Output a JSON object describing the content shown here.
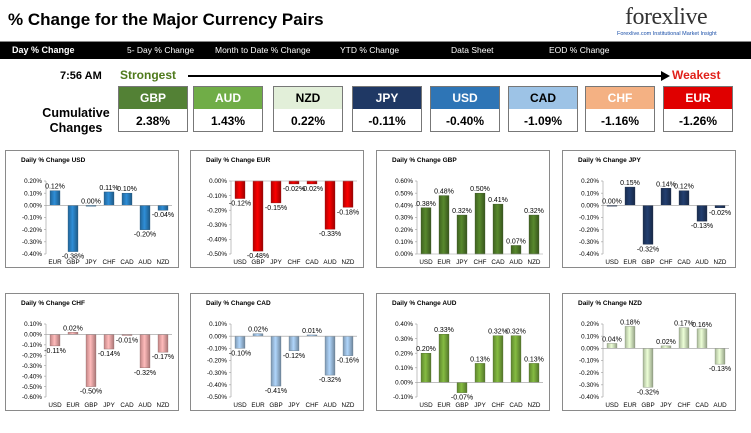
{
  "header": {
    "title": "% Change for the Major Currency Pairs",
    "logo_text": "forexlive",
    "logo_tagline": "Forexlive.com Institutional Market Insight"
  },
  "nav": {
    "tabs": [
      {
        "label": "Day % Change",
        "active": true
      },
      {
        "label": "5- Day % Change"
      },
      {
        "label": "Month to Date % Change"
      },
      {
        "label": "YTD % Change"
      },
      {
        "label": "Data Sheet"
      },
      {
        "label": "EOD % Change"
      }
    ]
  },
  "summary": {
    "time": "7:56 AM",
    "strongest_label": "Strongest",
    "weakest_label": "Weakest",
    "cumulative_label": "Cumulative Changes",
    "currencies": [
      {
        "name": "GBP",
        "value": "2.38%",
        "bg": "#538135",
        "fg": "#ffffff"
      },
      {
        "name": "AUD",
        "value": "1.43%",
        "bg": "#70ad47",
        "fg": "#ffffff"
      },
      {
        "name": "NZD",
        "value": "0.22%",
        "bg": "#e2efd9",
        "fg": "#000000"
      },
      {
        "name": "JPY",
        "value": "-0.11%",
        "bg": "#1f3864",
        "fg": "#ffffff"
      },
      {
        "name": "USD",
        "value": "-0.40%",
        "bg": "#2e75b6",
        "fg": "#ffffff"
      },
      {
        "name": "CAD",
        "value": "-1.09%",
        "bg": "#9dc3e6",
        "fg": "#000000"
      },
      {
        "name": "CHF",
        "value": "-1.16%",
        "bg": "#f4b183",
        "fg": "#ffffff"
      },
      {
        "name": "EUR",
        "value": "-1.26%",
        "bg": "#e00000",
        "fg": "#ffffff"
      }
    ]
  },
  "chart_data": [
    {
      "type": "bar",
      "title": "Daily % Change USD",
      "color": "#2a7fc0",
      "categories": [
        "EUR",
        "GBP",
        "JPY",
        "CHF",
        "CAD",
        "AUD",
        "NZD"
      ],
      "values": [
        0.12,
        -0.38,
        0.0,
        0.11,
        0.1,
        -0.2,
        -0.04
      ],
      "labels": [
        "0.12%",
        "-0.38%",
        "0.00%",
        "0.11%",
        "0.10%",
        "-0.20%",
        "-0.04%"
      ],
      "ylim": [
        -0.4,
        0.2
      ],
      "ticks": [
        0.2,
        0.1,
        0.0,
        -0.1,
        -0.2,
        -0.3,
        -0.4
      ],
      "tick_labels": [
        "0.20%",
        "0.10%",
        "0.00%",
        "-0.10%",
        "-0.20%",
        "-0.30%",
        "-0.40%"
      ]
    },
    {
      "type": "bar",
      "title": "Daily % Change EUR",
      "color": "#e00000",
      "categories": [
        "USD",
        "GBP",
        "JPY",
        "CHF",
        "CAD",
        "AUD",
        "NZD"
      ],
      "values": [
        -0.12,
        -0.48,
        -0.15,
        -0.02,
        -0.02,
        -0.33,
        -0.18
      ],
      "labels": [
        "-0.12%",
        "-0.48%",
        "-0.15%",
        "-0.02%",
        "-0.02%",
        "-0.33%",
        "-0.18%"
      ],
      "ylim": [
        -0.5,
        0.0
      ],
      "ticks": [
        0.0,
        -0.1,
        -0.2,
        -0.3,
        -0.4,
        -0.5
      ],
      "tick_labels": [
        "0.00%",
        "-0.10%",
        "-0.20%",
        "-0.30%",
        "-0.40%",
        "-0.50%"
      ]
    },
    {
      "type": "bar",
      "title": "Daily % Change GBP",
      "color": "#4f7a28",
      "categories": [
        "USD",
        "EUR",
        "JPY",
        "CHF",
        "CAD",
        "AUD",
        "NZD"
      ],
      "values": [
        0.38,
        0.48,
        0.32,
        0.5,
        0.41,
        0.07,
        0.32
      ],
      "labels": [
        "0.38%",
        "0.48%",
        "0.32%",
        "0.50%",
        "0.41%",
        "0.07%",
        "0.32%"
      ],
      "ylim": [
        0.0,
        0.6
      ],
      "ticks": [
        0.6,
        0.5,
        0.4,
        0.3,
        0.2,
        0.1,
        0.0
      ],
      "tick_labels": [
        "0.60%",
        "0.50%",
        "0.40%",
        "0.30%",
        "0.20%",
        "0.10%",
        "0.00%"
      ]
    },
    {
      "type": "bar",
      "title": "Daily % Change JPY",
      "color": "#1f3864",
      "categories": [
        "USD",
        "EUR",
        "GBP",
        "CHF",
        "CAD",
        "AUD",
        "NZD"
      ],
      "values": [
        0.0,
        0.15,
        -0.32,
        0.14,
        0.12,
        -0.13,
        -0.02
      ],
      "labels": [
        "0.00%",
        "0.15%",
        "-0.32%",
        "0.14%",
        "0.12%",
        "-0.13%",
        "-0.02%"
      ],
      "ylim": [
        -0.4,
        0.2
      ],
      "ticks": [
        0.2,
        0.1,
        0.0,
        -0.1,
        -0.2,
        -0.3,
        -0.4
      ],
      "tick_labels": [
        "0.20%",
        "0.10%",
        "0.00%",
        "-0.10%",
        "-0.20%",
        "-0.30%",
        "-0.40%"
      ]
    },
    {
      "type": "bar",
      "title": "Daily % Change CHF",
      "color": "#f2a7a7",
      "categories": [
        "USD",
        "EUR",
        "GBP",
        "JPY",
        "CAD",
        "AUD",
        "NZD"
      ],
      "values": [
        -0.11,
        0.02,
        -0.5,
        -0.14,
        -0.01,
        -0.32,
        -0.17
      ],
      "labels": [
        "-0.11%",
        "0.02%",
        "-0.50%",
        "-0.14%",
        "-0.01%",
        "-0.32%",
        "-0.17%"
      ],
      "ylim": [
        -0.6,
        0.1
      ],
      "ticks": [
        0.1,
        0.0,
        -0.1,
        -0.2,
        -0.3,
        -0.4,
        -0.5,
        -0.6
      ],
      "tick_labels": [
        "0.10%",
        "0.00%",
        "-0.10%",
        "-0.20%",
        "-0.30%",
        "-0.40%",
        "-0.50%",
        "-0.60%"
      ]
    },
    {
      "type": "bar",
      "title": "Daily % Change CAD",
      "color": "#9dbfe0",
      "categories": [
        "USD",
        "EUR",
        "GBP",
        "JPY",
        "CHF",
        "AUD",
        "NZD"
      ],
      "values": [
        -0.1,
        0.02,
        -0.41,
        -0.12,
        0.01,
        -0.32,
        -0.16
      ],
      "labels": [
        "-0.10%",
        "0.02%",
        "-0.41%",
        "-0.12%",
        "0.01%",
        "-0.32%",
        "-0.16%"
      ],
      "ylim": [
        -0.5,
        0.1
      ],
      "ticks": [
        0.1,
        0.0,
        -0.1,
        -0.2,
        -0.3,
        -0.4,
        -0.5
      ],
      "tick_labels": [
        "0.10%",
        "0.00%",
        "-0.10%",
        "-0.20%",
        "-0.30%",
        "-0.40%",
        "-0.50%"
      ]
    },
    {
      "type": "bar",
      "title": "Daily % Change AUD",
      "color": "#77a83a",
      "categories": [
        "USD",
        "EUR",
        "GBP",
        "JPY",
        "CHF",
        "CAD",
        "NZD"
      ],
      "values": [
        0.2,
        0.33,
        -0.07,
        0.13,
        0.32,
        0.32,
        0.13
      ],
      "labels": [
        "0.20%",
        "0.33%",
        "-0.07%",
        "0.13%",
        "0.32%",
        "0.32%",
        "0.13%"
      ],
      "ylim": [
        -0.1,
        0.4
      ],
      "ticks": [
        0.4,
        0.3,
        0.2,
        0.1,
        0.0,
        -0.1
      ],
      "tick_labels": [
        "0.40%",
        "0.30%",
        "0.20%",
        "0.10%",
        "0.00%",
        "-0.10%"
      ]
    },
    {
      "type": "bar",
      "title": "Daily % Change NZD",
      "color": "#d4e8c0",
      "categories": [
        "USD",
        "EUR",
        "GBP",
        "JPY",
        "CHF",
        "CAD",
        "AUD"
      ],
      "values": [
        0.04,
        0.18,
        -0.32,
        0.02,
        0.17,
        0.16,
        -0.13
      ],
      "labels": [
        "0.04%",
        "0.18%",
        "-0.32%",
        "0.02%",
        "0.17%",
        "0.16%",
        "-0.13%"
      ],
      "ylim": [
        -0.4,
        0.2
      ],
      "ticks": [
        0.2,
        0.1,
        0.0,
        -0.1,
        -0.2,
        -0.3,
        -0.4
      ],
      "tick_labels": [
        "0.20%",
        "0.10%",
        "0.00%",
        "-0.10%",
        "-0.20%",
        "-0.30%",
        "-0.40%"
      ]
    }
  ]
}
